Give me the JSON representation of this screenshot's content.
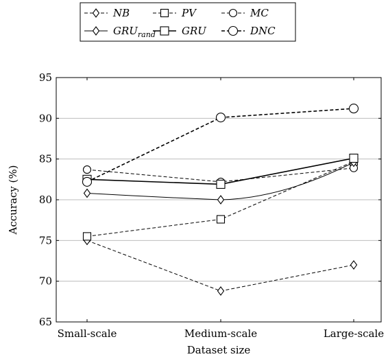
{
  "chart_data": {
    "type": "line",
    "categories": [
      "Small-scale",
      "Medium-scale",
      "Large-scale"
    ],
    "xlabel": "Dataset size",
    "ylabel": "Accuracy (%)",
    "ylim": [
      65,
      95
    ],
    "yticks": [
      65,
      70,
      75,
      80,
      85,
      90,
      95
    ],
    "grid": "horizontal",
    "legend_position": "top",
    "series": [
      {
        "name": "NB",
        "sub": "",
        "values": [
          75.0,
          68.8,
          72.0
        ],
        "marker": "diamond-open",
        "dash": "dashed",
        "color": "#000000"
      },
      {
        "name": "PV",
        "sub": "",
        "values": [
          75.5,
          77.6,
          84.7
        ],
        "marker": "square-open",
        "dash": "dashed",
        "color": "#000000"
      },
      {
        "name": "MC",
        "sub": "",
        "values": [
          83.7,
          82.2,
          83.9
        ],
        "marker": "circle-open",
        "dash": "dashed",
        "color": "#000000"
      },
      {
        "name": "GRU",
        "sub": "rand",
        "values": [
          80.8,
          80.0,
          84.6
        ],
        "marker": "diamond",
        "dash": "solid",
        "color": "#000000"
      },
      {
        "name": "GRU",
        "sub": "",
        "values": [
          82.5,
          81.9,
          85.1
        ],
        "marker": "square",
        "dash": "solid",
        "color": "#000000"
      },
      {
        "name": "DNC",
        "sub": "",
        "values": [
          82.2,
          90.1,
          91.2
        ],
        "marker": "circle",
        "dash": "dashed",
        "color": "#000000"
      }
    ]
  }
}
